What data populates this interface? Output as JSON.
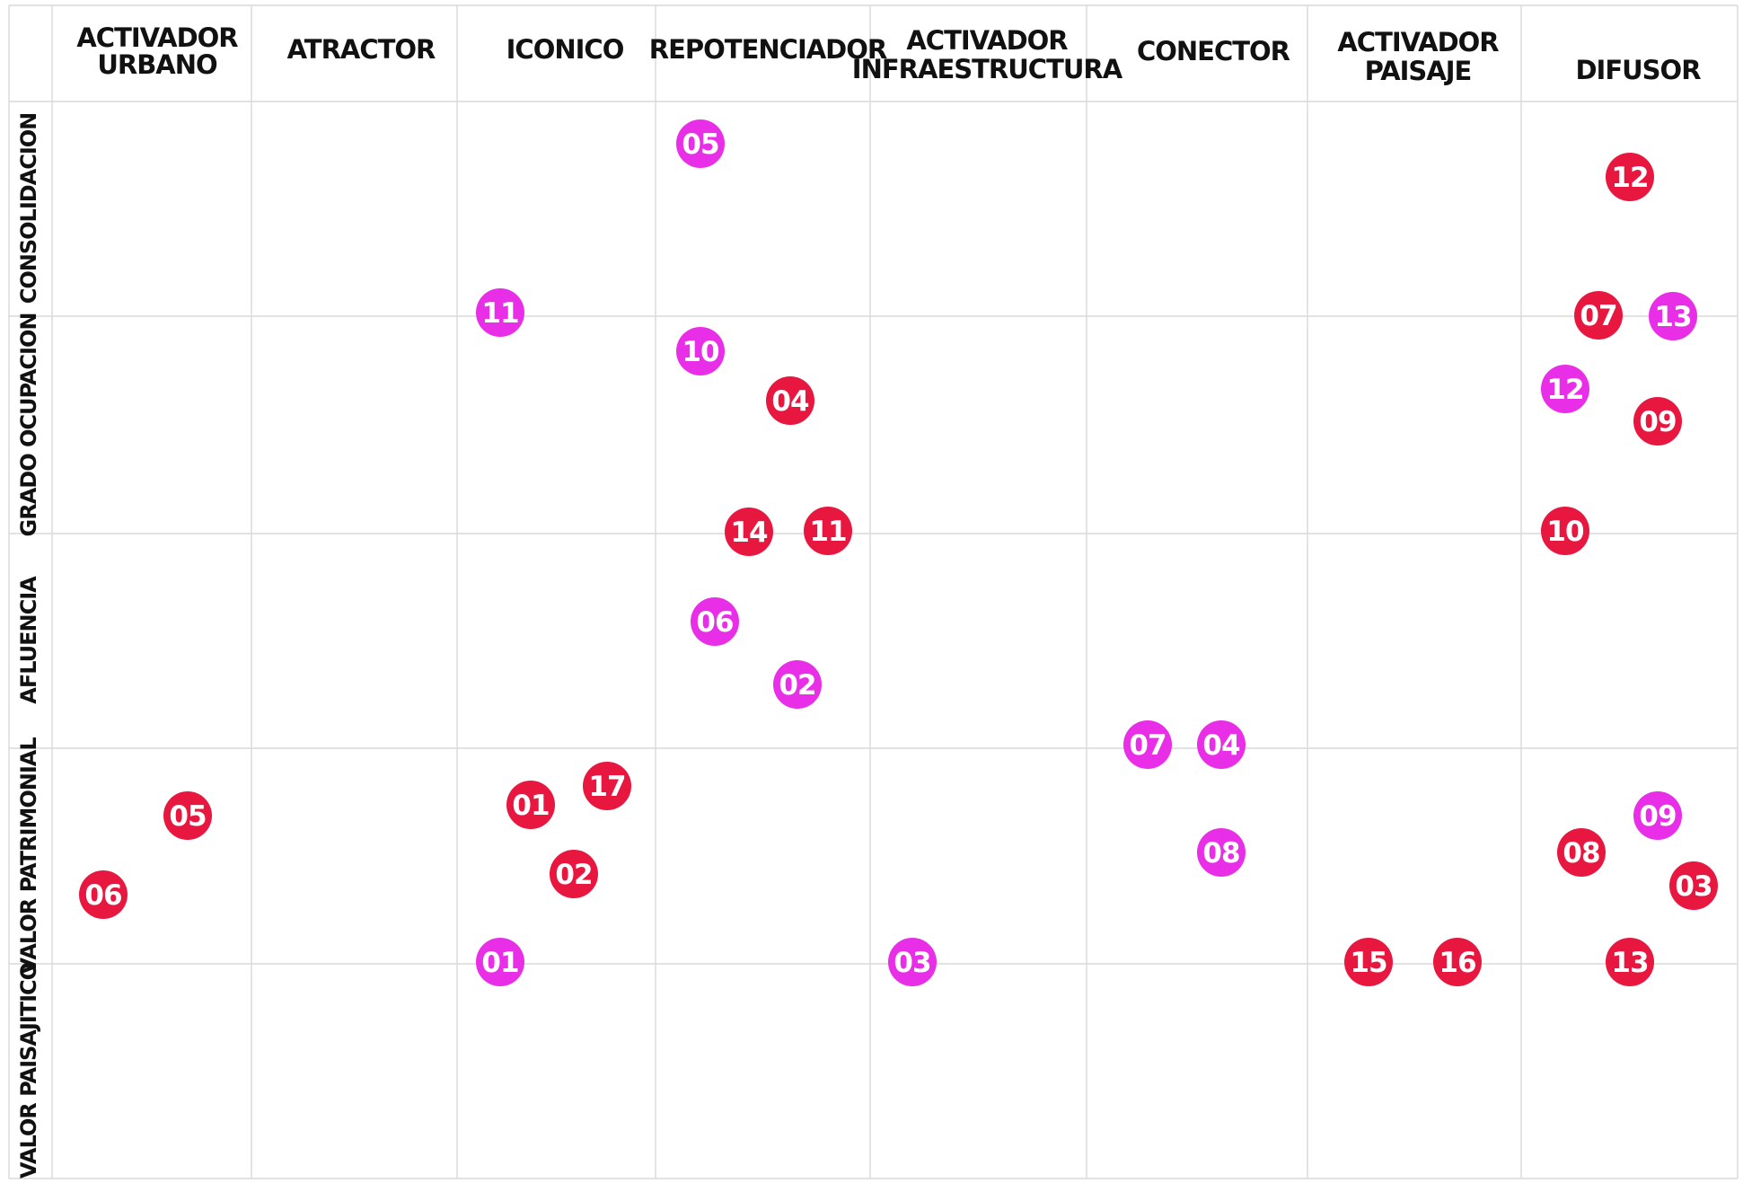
{
  "colors": {
    "red": "#e8173f",
    "magenta": "#e92ee8",
    "grid": "#d9d9d9"
  },
  "columns": [
    {
      "lines": [
        "ACTIVADOR",
        "URBANO"
      ]
    },
    {
      "lines": [
        "ATRACTOR"
      ]
    },
    {
      "lines": [
        "ICONICO"
      ]
    },
    {
      "lines": [
        "REPOTENCIADOR"
      ]
    },
    {
      "lines": [
        "ACTIVADOR",
        "INFRAESTRUCTURA"
      ]
    },
    {
      "lines": [
        "CONECTOR"
      ]
    },
    {
      "lines": [
        "ACTIVADOR",
        "PAISAJE"
      ]
    },
    {
      "lines": [
        "DIFUSOR"
      ]
    }
  ],
  "rows": [
    {
      "label": "CONSOLIDACION"
    },
    {
      "label": "GRADO OCUPACION"
    },
    {
      "label": "AFLUENCIA"
    },
    {
      "label": "VALOR PATRIMONIAL"
    },
    {
      "label": "VALOR PAISAJITICO"
    }
  ],
  "markers": [
    {
      "label": "05",
      "color": "magenta"
    },
    {
      "label": "12",
      "color": "red"
    },
    {
      "label": "11",
      "color": "magenta"
    },
    {
      "label": "07",
      "color": "red"
    },
    {
      "label": "13",
      "color": "magenta"
    },
    {
      "label": "10",
      "color": "magenta"
    },
    {
      "label": "04",
      "color": "red"
    },
    {
      "label": "12",
      "color": "magenta"
    },
    {
      "label": "09",
      "color": "red"
    },
    {
      "label": "14",
      "color": "red"
    },
    {
      "label": "11",
      "color": "red"
    },
    {
      "label": "10",
      "color": "red"
    },
    {
      "label": "06",
      "color": "magenta"
    },
    {
      "label": "02",
      "color": "magenta"
    },
    {
      "label": "07",
      "color": "magenta"
    },
    {
      "label": "04",
      "color": "magenta"
    },
    {
      "label": "05",
      "color": "red"
    },
    {
      "label": "01",
      "color": "red"
    },
    {
      "label": "17",
      "color": "red"
    },
    {
      "label": "09",
      "color": "magenta"
    },
    {
      "label": "08",
      "color": "magenta"
    },
    {
      "label": "08",
      "color": "red"
    },
    {
      "label": "06",
      "color": "red"
    },
    {
      "label": "02",
      "color": "red"
    },
    {
      "label": "03",
      "color": "red"
    },
    {
      "label": "01",
      "color": "magenta"
    },
    {
      "label": "03",
      "color": "magenta"
    },
    {
      "label": "15",
      "color": "red"
    },
    {
      "label": "16",
      "color": "red"
    },
    {
      "label": "13",
      "color": "red"
    }
  ]
}
